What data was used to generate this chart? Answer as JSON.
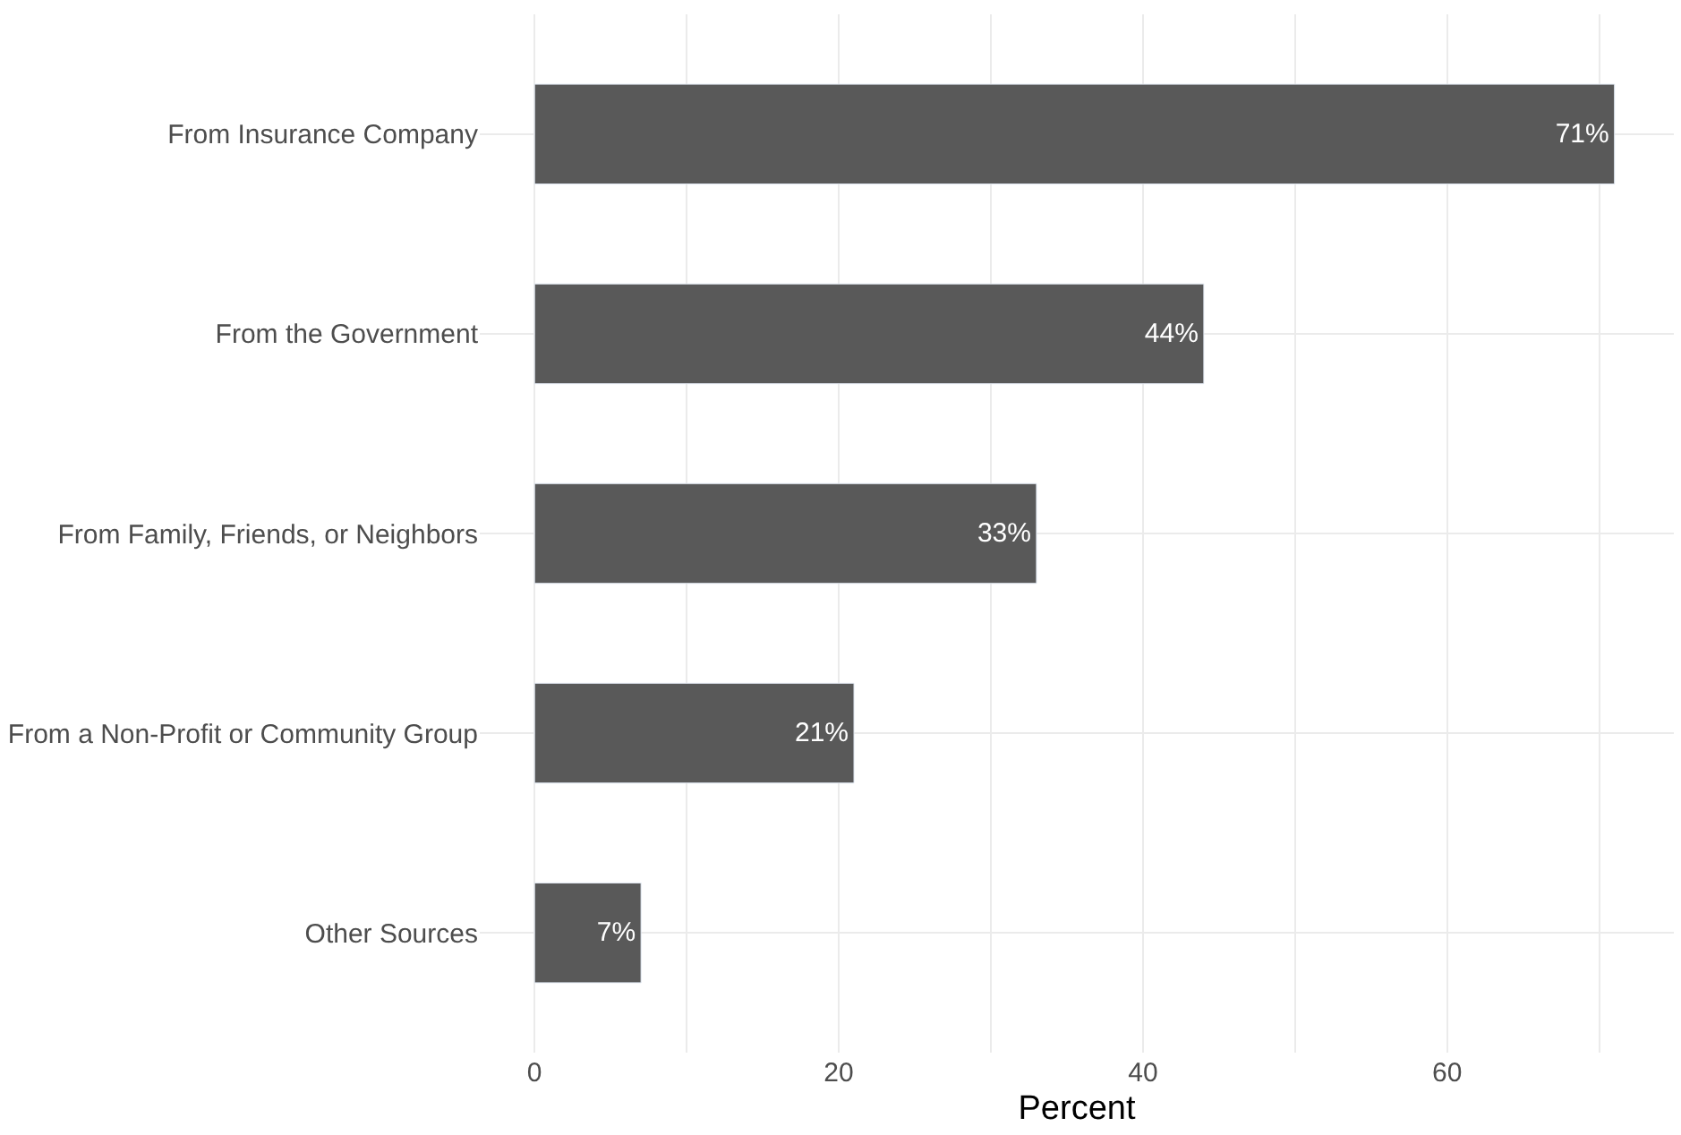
{
  "chart_data": {
    "type": "bar",
    "orientation": "horizontal",
    "xlabel": "Percent",
    "categories": [
      "From Insurance Company",
      "From the Government",
      "From Family, Friends, or Neighbors",
      "From a Non-Profit or Community Group",
      "Other Sources"
    ],
    "values": [
      71,
      44,
      33,
      21,
      7
    ],
    "value_labels": [
      "71%",
      "44%",
      "33%",
      "21%",
      "7%"
    ],
    "color": "#595959",
    "xlim": [
      -3.6,
      74.9
    ],
    "xticks": [
      0,
      {
        "value": 10,
        "label": null
      },
      20,
      {
        "value": 30,
        "label": null
      },
      40,
      {
        "value": 50,
        "label": null
      },
      60,
      {
        "value": 70,
        "label": null
      }
    ],
    "grid": true,
    "legend": false
  }
}
